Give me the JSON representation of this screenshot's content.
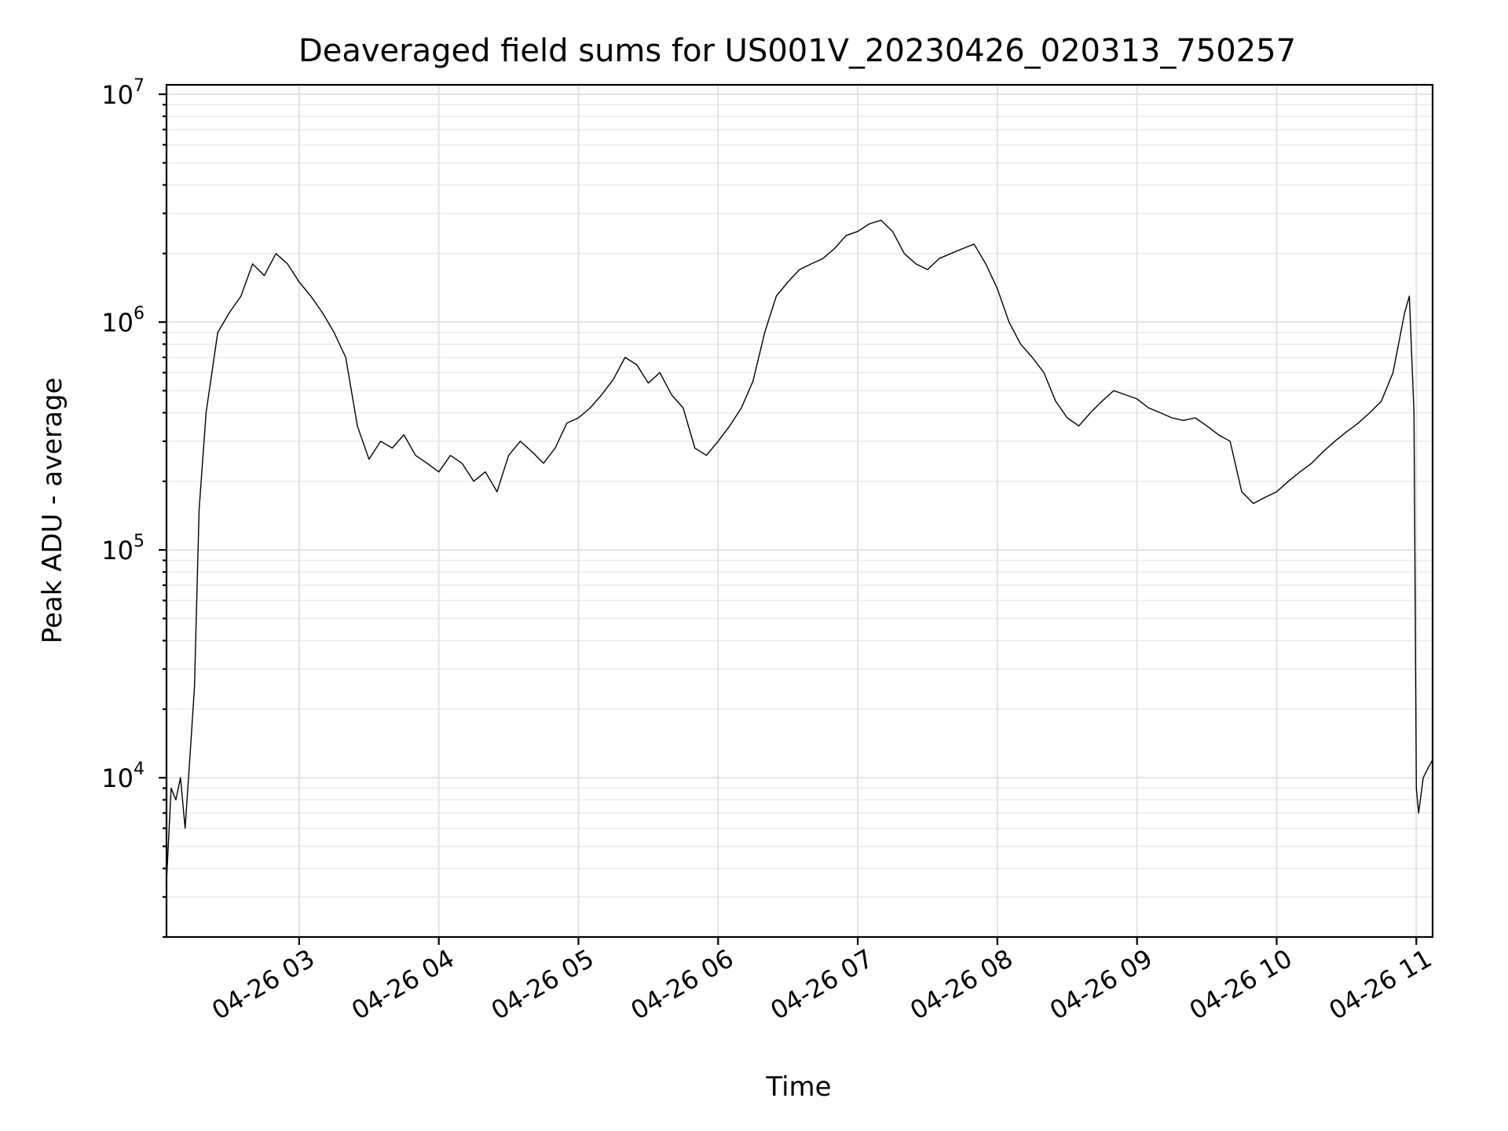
{
  "chart_data": {
    "type": "line",
    "title": "Deaveraged field sums for US001V_20230426_020313_750257",
    "xlabel": "Time",
    "ylabel": "Peak ADU - average",
    "yscale": "log",
    "ylim": [
      2000,
      11000000
    ],
    "xlim": [
      "04-26 02:03",
      "04-26 11:07"
    ],
    "y_ticks": [
      {
        "base": "10",
        "exp": "4",
        "value": 10000
      },
      {
        "base": "10",
        "exp": "5",
        "value": 100000
      },
      {
        "base": "10",
        "exp": "6",
        "value": 1000000
      },
      {
        "base": "10",
        "exp": "7",
        "value": 10000000
      }
    ],
    "x_ticks": [
      {
        "label": "04-26 03",
        "value": "04-26 03:00"
      },
      {
        "label": "04-26 04",
        "value": "04-26 04:00"
      },
      {
        "label": "04-26 05",
        "value": "04-26 05:00"
      },
      {
        "label": "04-26 06",
        "value": "04-26 06:00"
      },
      {
        "label": "04-26 07",
        "value": "04-26 07:00"
      },
      {
        "label": "04-26 08",
        "value": "04-26 08:00"
      },
      {
        "label": "04-26 09",
        "value": "04-26 09:00"
      },
      {
        "label": "04-26 10",
        "value": "04-26 10:00"
      },
      {
        "label": "04-26 11",
        "value": "04-26 11:00"
      }
    ],
    "grid": true,
    "line_color": "#000000",
    "series": [
      {
        "x": [
          "04-26 02:03",
          "04-26 02:05",
          "04-26 02:07",
          "04-26 02:09",
          "04-26 02:11",
          "04-26 02:13",
          "04-26 02:15",
          "04-26 02:17",
          "04-26 02:20",
          "04-26 02:25",
          "04-26 02:30",
          "04-26 02:35",
          "04-26 02:40",
          "04-26 02:45",
          "04-26 02:50",
          "04-26 02:55",
          "04-26 03:00",
          "04-26 03:05",
          "04-26 03:10",
          "04-26 03:15",
          "04-26 03:20",
          "04-26 03:25",
          "04-26 03:30",
          "04-26 03:35",
          "04-26 03:40",
          "04-26 03:45",
          "04-26 03:50",
          "04-26 03:55",
          "04-26 04:00",
          "04-26 04:05",
          "04-26 04:10",
          "04-26 04:15",
          "04-26 04:20",
          "04-26 04:25",
          "04-26 04:30",
          "04-26 04:35",
          "04-26 04:40",
          "04-26 04:45",
          "04-26 04:50",
          "04-26 04:55",
          "04-26 05:00",
          "04-26 05:05",
          "04-26 05:10",
          "04-26 05:15",
          "04-26 05:20",
          "04-26 05:25",
          "04-26 05:30",
          "04-26 05:35",
          "04-26 05:40",
          "04-26 05:45",
          "04-26 05:50",
          "04-26 05:55",
          "04-26 06:00",
          "04-26 06:05",
          "04-26 06:10",
          "04-26 06:15",
          "04-26 06:20",
          "04-26 06:25",
          "04-26 06:30",
          "04-26 06:35",
          "04-26 06:40",
          "04-26 06:45",
          "04-26 06:50",
          "04-26 06:55",
          "04-26 07:00",
          "04-26 07:05",
          "04-26 07:10",
          "04-26 07:15",
          "04-26 07:20",
          "04-26 07:25",
          "04-26 07:30",
          "04-26 07:35",
          "04-26 07:40",
          "04-26 07:45",
          "04-26 07:50",
          "04-26 07:55",
          "04-26 08:00",
          "04-26 08:05",
          "04-26 08:10",
          "04-26 08:15",
          "04-26 08:20",
          "04-26 08:25",
          "04-26 08:30",
          "04-26 08:35",
          "04-26 08:40",
          "04-26 08:45",
          "04-26 08:50",
          "04-26 08:55",
          "04-26 09:00",
          "04-26 09:05",
          "04-26 09:10",
          "04-26 09:15",
          "04-26 09:20",
          "04-26 09:25",
          "04-26 09:30",
          "04-26 09:35",
          "04-26 09:40",
          "04-26 09:45",
          "04-26 09:50",
          "04-26 09:55",
          "04-26 10:00",
          "04-26 10:05",
          "04-26 10:10",
          "04-26 10:15",
          "04-26 10:20",
          "04-26 10:25",
          "04-26 10:30",
          "04-26 10:35",
          "04-26 10:40",
          "04-26 10:45",
          "04-26 10:50",
          "04-26 10:55",
          "04-26 10:57",
          "04-26 10:59",
          "04-26 11:00",
          "04-26 11:01",
          "04-26 11:03",
          "04-26 11:05",
          "04-26 11:07"
        ],
        "y": [
          3500,
          9000,
          8000,
          10000,
          6000,
          12000,
          25000,
          150000,
          400000,
          900000,
          1100000,
          1300000,
          1800000,
          1600000,
          2000000,
          1800000,
          1500000,
          1300000,
          1100000,
          900000,
          700000,
          350000,
          250000,
          300000,
          280000,
          320000,
          260000,
          240000,
          220000,
          260000,
          240000,
          200000,
          220000,
          180000,
          260000,
          300000,
          270000,
          240000,
          280000,
          360000,
          380000,
          420000,
          480000,
          560000,
          700000,
          650000,
          540000,
          600000,
          480000,
          420000,
          280000,
          260000,
          300000,
          350000,
          420000,
          550000,
          900000,
          1300000,
          1500000,
          1700000,
          1800000,
          1900000,
          2100000,
          2400000,
          2500000,
          2700000,
          2800000,
          2500000,
          2000000,
          1800000,
          1700000,
          1900000,
          2000000,
          2100000,
          2200000,
          1800000,
          1400000,
          1000000,
          800000,
          700000,
          600000,
          450000,
          380000,
          350000,
          400000,
          450000,
          500000,
          480000,
          460000,
          420000,
          400000,
          380000,
          370000,
          380000,
          350000,
          320000,
          300000,
          180000,
          160000,
          170000,
          180000,
          200000,
          220000,
          240000,
          270000,
          300000,
          330000,
          360000,
          400000,
          450000,
          600000,
          1100000,
          1300000,
          400000,
          9000,
          7000,
          10000,
          11000,
          12000
        ]
      }
    ]
  }
}
